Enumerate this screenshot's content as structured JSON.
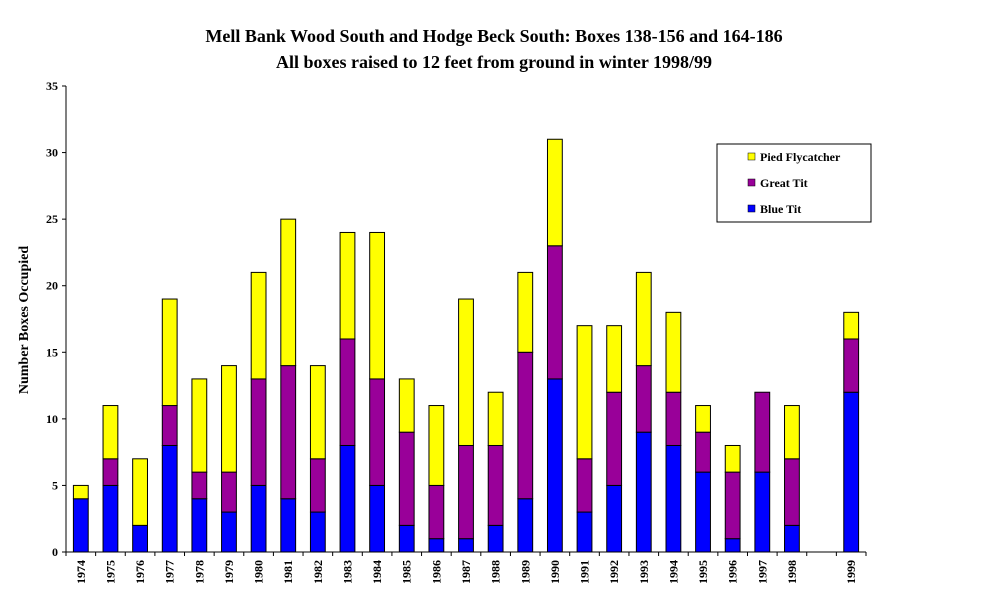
{
  "chart_data": {
    "type": "bar",
    "stacked": true,
    "title": "Mell Bank Wood South and Hodge Beck South: Boxes 138-156 and 164-186",
    "subtitle": "All boxes raised to 12 feet from ground in winter 1998/99",
    "ylabel": "Number Boxes Occupied",
    "xlabel": "",
    "ylim": [
      0,
      35
    ],
    "yticks": [
      "0",
      "5",
      "10",
      "15",
      "20",
      "25",
      "30",
      "35"
    ],
    "categories": [
      "1974",
      "1975",
      "1976",
      "1977",
      "1978",
      "1979",
      "1980",
      "1981",
      "1982",
      "1983",
      "1984",
      "1985",
      "1986",
      "1987",
      "1988",
      "1989",
      "1990",
      "1991",
      "1992",
      "1993",
      "1994",
      "1995",
      "1996",
      "1997",
      "1998",
      "",
      "1999"
    ],
    "series": [
      {
        "name": "Blue Tit",
        "color": "#0000ff",
        "values": [
          4,
          5,
          2,
          8,
          4,
          3,
          5,
          4,
          3,
          8,
          5,
          2,
          1,
          1,
          2,
          4,
          13,
          3,
          5,
          9,
          8,
          6,
          1,
          6,
          2,
          null,
          12
        ]
      },
      {
        "name": "Great Tit",
        "color": "#990099",
        "values": [
          0,
          2,
          0,
          3,
          2,
          3,
          8,
          10,
          4,
          8,
          8,
          7,
          4,
          7,
          6,
          11,
          10,
          4,
          7,
          5,
          4,
          3,
          5,
          6,
          5,
          null,
          4
        ]
      },
      {
        "name": "Pied Flycatcher",
        "color": "#ffff00",
        "values": [
          1,
          4,
          5,
          8,
          7,
          8,
          8,
          11,
          7,
          8,
          11,
          4,
          6,
          11,
          4,
          6,
          8,
          10,
          5,
          7,
          6,
          2,
          2,
          0,
          4,
          null,
          2
        ]
      }
    ],
    "legend": {
      "position": "top-right",
      "order": [
        "Pied Flycatcher",
        "Great Tit",
        "Blue Tit"
      ]
    },
    "grid": false
  }
}
